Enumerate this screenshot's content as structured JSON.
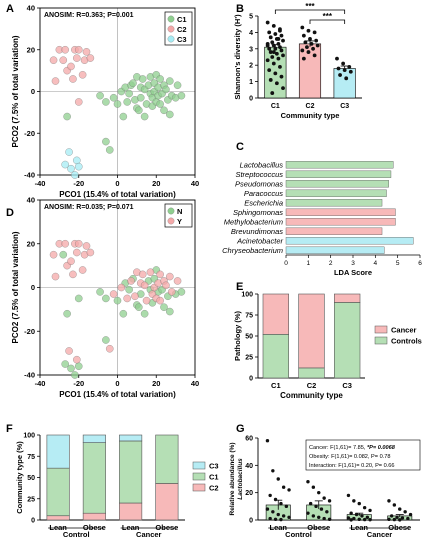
{
  "chart_data": [
    {
      "panel": "A",
      "type": "scatter",
      "xlabel": "PCO1 (15.4% of total variation)",
      "ylabel": "PCO2 (7.5% of total variation)",
      "xlim": [
        -40,
        40
      ],
      "ylim": [
        -40,
        40
      ],
      "xticks": [
        -40,
        -20,
        0,
        20,
        40
      ],
      "yticks": [
        -40,
        -20,
        0,
        20,
        40
      ],
      "annotation": "ANOSIM: R=0.363; P=0.001",
      "legend_position": "top-right",
      "series": [
        {
          "name": "C1",
          "color": "#8fcf8f",
          "points": [
            [
              -9,
              -2
            ],
            [
              -6,
              -5
            ],
            [
              -2,
              -3
            ],
            [
              0,
              -6
            ],
            [
              2,
              0
            ],
            [
              3,
              -12
            ],
            [
              4,
              2
            ],
            [
              5,
              -5
            ],
            [
              6,
              -1
            ],
            [
              7,
              3
            ],
            [
              8,
              4
            ],
            [
              9,
              -4
            ],
            [
              10,
              -8
            ],
            [
              10,
              7
            ],
            [
              11,
              -9
            ],
            [
              12,
              2
            ],
            [
              12,
              -3
            ],
            [
              13,
              6
            ],
            [
              14,
              1
            ],
            [
              14,
              -12
            ],
            [
              15,
              -6
            ],
            [
              16,
              3
            ],
            [
              17,
              7
            ],
            [
              17,
              -1
            ],
            [
              18,
              -3
            ],
            [
              18,
              -7
            ],
            [
              19,
              0
            ],
            [
              19,
              4
            ],
            [
              20,
              -5
            ],
            [
              20,
              8
            ],
            [
              21,
              2
            ],
            [
              21,
              -2
            ],
            [
              22,
              -6
            ],
            [
              22,
              6
            ],
            [
              23,
              -1
            ],
            [
              24,
              3
            ],
            [
              24,
              -9
            ],
            [
              25,
              1
            ],
            [
              26,
              -4
            ],
            [
              27,
              -11
            ],
            [
              27,
              5
            ],
            [
              28,
              -2
            ],
            [
              30,
              -3
            ],
            [
              31,
              3
            ],
            [
              33,
              -2
            ],
            [
              -6,
              -24
            ],
            [
              -4,
              -28
            ],
            [
              -26,
              -12
            ]
          ]
        },
        {
          "name": "C2",
          "color": "#f4a8a8",
          "points": [
            [
              -33,
              15
            ],
            [
              -32,
              5
            ],
            [
              -30,
              20
            ],
            [
              -28,
              15
            ],
            [
              -27,
              20
            ],
            [
              -26,
              10
            ],
            [
              -24,
              12
            ],
            [
              -23,
              6
            ],
            [
              -22,
              20
            ],
            [
              -21,
              16
            ],
            [
              -20,
              20
            ],
            [
              -18,
              8
            ],
            [
              -17,
              15
            ],
            [
              -16,
              19
            ],
            [
              -14,
              16
            ],
            [
              -20,
              -5
            ]
          ]
        },
        {
          "name": "C3",
          "color": "#a6ecf4",
          "points": [
            [
              -27,
              -35
            ],
            [
              -25,
              -29
            ],
            [
              -24,
              -37
            ],
            [
              -22,
              -40
            ],
            [
              -21,
              -33
            ],
            [
              -20,
              -36
            ]
          ]
        }
      ]
    },
    {
      "panel": "B",
      "type": "bar",
      "categories": [
        "C1",
        "C2",
        "C3"
      ],
      "values": [
        3.1,
        3.3,
        1.8
      ],
      "errors": [
        0.15,
        0.18,
        0.15
      ],
      "colors": [
        "#b5dfb5",
        "#f7b9b9",
        "#b6ecf4"
      ],
      "xlabel": "Community type",
      "ylabel": "Shannon's diversity (H')",
      "ylim": [
        0,
        5
      ],
      "yticks": [
        0,
        1,
        2,
        3,
        4,
        5
      ],
      "points": [
        [
          4.6,
          4.4,
          4.2,
          4.0,
          3.9,
          3.8,
          3.7,
          3.6,
          3.5,
          3.4,
          3.3,
          3.3,
          3.2,
          3.1,
          3.0,
          3.0,
          2.9,
          2.8,
          2.7,
          2.6,
          2.5,
          2.4,
          2.3,
          2.1,
          1.9,
          1.7,
          1.5,
          1.3,
          1.1,
          0.9,
          0.6,
          0.3,
          3.6,
          3.2,
          2.8,
          4.1
        ],
        [
          4.3,
          4.1,
          4.0,
          3.8,
          3.6,
          3.5,
          3.4,
          3.3,
          3.2,
          3.1,
          3.0,
          2.9,
          2.8,
          2.6,
          2.4
        ],
        [
          2.4,
          2.1,
          1.9,
          1.8,
          1.7,
          1.6,
          1.4,
          1.2
        ]
      ],
      "significance": [
        {
          "from": "C1",
          "to": "C3",
          "label": "***"
        },
        {
          "from": "C2",
          "to": "C3",
          "label": "***"
        }
      ]
    },
    {
      "panel": "C",
      "type": "bar",
      "orientation": "horizontal",
      "categories": [
        "Lactobacillus",
        "Streptococcus",
        "Pseudomonas",
        "Paracoccus",
        "Escherichia",
        "Sphingomonas",
        "Methylobacterium",
        "Brevundimonas",
        "Acinetobacter",
        "Chryseobacterium"
      ],
      "values": [
        4.8,
        4.7,
        4.6,
        4.5,
        4.3,
        4.9,
        4.9,
        4.3,
        5.7,
        4.4
      ],
      "colors": [
        "#b5dfb5",
        "#b5dfb5",
        "#b5dfb5",
        "#b5dfb5",
        "#b5dfb5",
        "#f7b9b9",
        "#f7b9b9",
        "#f7b9b9",
        "#b6ecf4",
        "#b6ecf4"
      ],
      "xlabel": "LDA Score",
      "xlim": [
        0,
        6
      ],
      "xticks": [
        0,
        1,
        2,
        3,
        4,
        5,
        6
      ]
    },
    {
      "panel": "D",
      "type": "scatter",
      "xlabel": "PCO1 (15.4% of total variation)",
      "ylabel": "PCO2 (7.5% of total variation)",
      "xlim": [
        -40,
        40
      ],
      "ylim": [
        -40,
        40
      ],
      "xticks": [
        -40,
        -20,
        0,
        20,
        40
      ],
      "yticks": [
        -40,
        -20,
        0,
        20,
        40
      ],
      "annotation": "ANOSIM: R=0.035; P=0.071",
      "legend_position": "top-right",
      "series": [
        {
          "name": "N",
          "color": "#8fcf8f",
          "points": [
            [
              -9,
              -2
            ],
            [
              -6,
              -5
            ],
            [
              0,
              -6
            ],
            [
              3,
              -12
            ],
            [
              4,
              2
            ],
            [
              6,
              -1
            ],
            [
              8,
              4
            ],
            [
              10,
              -8
            ],
            [
              11,
              -9
            ],
            [
              12,
              -3
            ],
            [
              14,
              -12
            ],
            [
              16,
              3
            ],
            [
              17,
              -1
            ],
            [
              18,
              -7
            ],
            [
              19,
              4
            ],
            [
              20,
              8
            ],
            [
              21,
              -2
            ],
            [
              23,
              -1
            ],
            [
              24,
              -9
            ],
            [
              26,
              -4
            ],
            [
              27,
              -11
            ],
            [
              30,
              -3
            ],
            [
              33,
              -2
            ],
            [
              -26,
              -12
            ],
            [
              -24,
              -37
            ],
            [
              -22,
              -40
            ],
            [
              -20,
              -36
            ],
            [
              -27,
              -35
            ],
            [
              -6,
              -24
            ],
            [
              -20,
              -5
            ],
            [
              -28,
              15
            ]
          ]
        },
        {
          "name": "Y",
          "color": "#f4a8a8",
          "points": [
            [
              -33,
              15
            ],
            [
              -32,
              5
            ],
            [
              -30,
              20
            ],
            [
              -27,
              20
            ],
            [
              -26,
              10
            ],
            [
              -24,
              12
            ],
            [
              -23,
              6
            ],
            [
              -22,
              20
            ],
            [
              -21,
              16
            ],
            [
              -20,
              20
            ],
            [
              -18,
              8
            ],
            [
              -17,
              15
            ],
            [
              -16,
              19
            ],
            [
              -14,
              16
            ],
            [
              -2,
              -3
            ],
            [
              2,
              0
            ],
            [
              5,
              -5
            ],
            [
              7,
              3
            ],
            [
              9,
              -4
            ],
            [
              10,
              7
            ],
            [
              12,
              2
            ],
            [
              13,
              6
            ],
            [
              14,
              1
            ],
            [
              15,
              -6
            ],
            [
              17,
              7
            ],
            [
              18,
              -3
            ],
            [
              19,
              0
            ],
            [
              20,
              -5
            ],
            [
              21,
              2
            ],
            [
              22,
              -6
            ],
            [
              22,
              6
            ],
            [
              24,
              3
            ],
            [
              25,
              1
            ],
            [
              27,
              5
            ],
            [
              28,
              -2
            ],
            [
              31,
              3
            ],
            [
              -25,
              -29
            ],
            [
              -21,
              -33
            ],
            [
              -4,
              -28
            ]
          ]
        }
      ]
    },
    {
      "panel": "E",
      "type": "bar",
      "stacked": true,
      "categories": [
        "C1",
        "C2",
        "C3"
      ],
      "series": [
        {
          "name": "Controls",
          "color": "#b5dfb5",
          "values": [
            52,
            12,
            90
          ]
        },
        {
          "name": "Cancer",
          "color": "#f7b9b9",
          "values": [
            48,
            88,
            10
          ]
        }
      ],
      "xlabel": "Community type",
      "ylabel": "Pathology (%)",
      "ylim": [
        0,
        100
      ],
      "yticks": [
        0,
        25,
        50,
        75,
        100
      ],
      "legend_position": "right"
    },
    {
      "panel": "F",
      "type": "bar",
      "stacked": true,
      "categories": [
        "Lean",
        "Obese",
        "Lean",
        "Obese"
      ],
      "groups": [
        {
          "label": "Control",
          "categories": [
            0,
            1
          ]
        },
        {
          "label": "Cancer",
          "categories": [
            2,
            3
          ]
        }
      ],
      "series": [
        {
          "name": "C2",
          "color": "#f7b9b9",
          "values": [
            5,
            8,
            20,
            43
          ]
        },
        {
          "name": "C1",
          "color": "#b5dfb5",
          "values": [
            56,
            83,
            73,
            57
          ]
        },
        {
          "name": "C3",
          "color": "#b6ecf4",
          "values": [
            39,
            9,
            7,
            0
          ]
        }
      ],
      "ylabel": "Community type (%)",
      "ylim": [
        0,
        100
      ],
      "yticks": [
        0,
        25,
        50,
        75,
        100
      ],
      "legend_order": [
        "C3",
        "C1",
        "C2"
      ],
      "legend_position": "right"
    },
    {
      "panel": "G",
      "type": "bar",
      "categories": [
        "Lean",
        "Obese",
        "Lean",
        "Obese"
      ],
      "groups": [
        {
          "label": "Control",
          "categories": [
            0,
            1
          ]
        },
        {
          "label": "Cancer",
          "categories": [
            2,
            3
          ]
        }
      ],
      "values": [
        11,
        11,
        4,
        3
      ],
      "errors": [
        3.5,
        3,
        1,
        1
      ],
      "color": "#b5dfb5",
      "ylabel": "Relative abundance (%)",
      "ylabel_italic": "Lactobacillus",
      "ylim": [
        0,
        60
      ],
      "yticks": [
        0,
        20,
        40,
        60
      ],
      "points": [
        [
          58,
          36,
          30,
          24,
          22,
          18,
          15,
          12,
          10,
          8,
          6,
          4,
          3,
          2,
          1,
          0.5,
          0.3
        ],
        [
          28,
          24,
          20,
          16,
          14,
          12,
          10,
          8,
          6,
          5,
          3,
          2,
          1,
          0.5
        ],
        [
          18,
          14,
          12,
          9,
          7,
          5,
          4,
          3,
          2,
          1.5,
          1,
          0.5,
          0.3,
          0.2,
          0.1
        ],
        [
          14,
          11,
          8,
          6,
          4,
          3,
          2,
          1.5,
          1,
          0.5,
          0.3,
          0.1
        ]
      ],
      "stats_box": [
        "Cancer: F(1,61)= 7.85, ",
        "Obesity: F(1,61)= 0.082, P= 0.78",
        "Interaction: F(1,61)= 0.20, P= 0.66"
      ],
      "stats_box_emph": "*P= 0.0068"
    }
  ]
}
